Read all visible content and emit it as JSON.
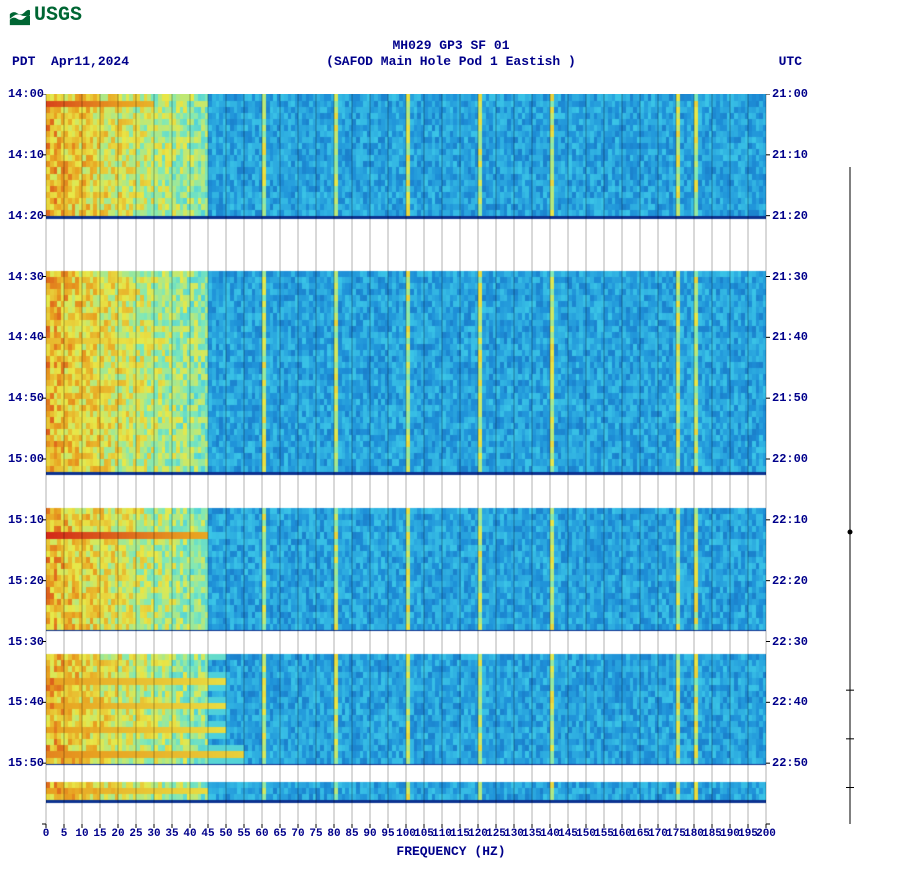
{
  "type": "spectrogram",
  "logo_text": "USGS",
  "title": "MH029 GP3 SF 01",
  "subtitle": "(SAFOD Main Hole Pod 1 Eastish )",
  "date_label": "Apr11,2024",
  "tz_left": "PDT",
  "tz_right": "UTC",
  "x_axis_title": "FREQUENCY (HZ)",
  "text_color": "#00008b",
  "logo_color": "#006633",
  "plot": {
    "xlim": [
      0,
      200
    ],
    "xtick_step": 5,
    "y_left_ticks": [
      "14:00",
      "14:10",
      "14:20",
      "14:30",
      "14:40",
      "14:50",
      "15:00",
      "15:10",
      "15:20",
      "15:30",
      "15:40",
      "15:50"
    ],
    "y_right_ticks": [
      "21:00",
      "21:10",
      "21:20",
      "21:30",
      "21:40",
      "21:50",
      "22:00",
      "22:10",
      "22:20",
      "22:30",
      "22:40",
      "22:50"
    ],
    "time_start_min": 0,
    "time_end_min": 120,
    "freq_bins": 200,
    "time_bins": 120,
    "colors": {
      "low": "#0a2a8a",
      "mid_low": "#1e90d8",
      "mid": "#3cc8e8",
      "mid_high": "#7fe8b8",
      "high": "#e8e848",
      "hot": "#e8a020",
      "very_hot": "#d01818",
      "gap": "#ffffff",
      "grid": "#000000"
    },
    "data_gaps_minutes": [
      [
        20.5,
        29
      ],
      [
        62.6,
        68
      ],
      [
        88.2,
        92
      ],
      [
        110.2,
        113
      ],
      [
        116.5,
        120
      ]
    ],
    "dark_bands_minutes": [
      19.5,
      62,
      88,
      110,
      116
    ],
    "hot_events": [
      {
        "time_min": 1,
        "freq_end": 30,
        "intensity": 0.95
      },
      {
        "time_min": 40,
        "freq_end": 30,
        "intensity": 0.8
      },
      {
        "time_min": 72,
        "freq_end": 45,
        "intensity": 0.98
      },
      {
        "time_min": 91,
        "freq_end": 50,
        "intensity": 0.95
      },
      {
        "time_min": 96,
        "freq_end": 50,
        "intensity": 0.85
      },
      {
        "time_min": 100,
        "freq_end": 50,
        "intensity": 0.85
      },
      {
        "time_min": 104,
        "freq_end": 50,
        "intensity": 0.85
      },
      {
        "time_min": 108,
        "freq_end": 55,
        "intensity": 0.88
      },
      {
        "time_min": 114,
        "freq_end": 45,
        "intensity": 0.85
      }
    ],
    "narrowband_lines_hz": [
      60,
      80,
      100,
      120,
      140,
      175,
      180
    ],
    "low_freq_high_power_cutoff_hz": 45,
    "right_markers_minutes": [
      {
        "type": "dot",
        "at": 72
      },
      {
        "type": "tick",
        "at": 98
      },
      {
        "type": "tick",
        "at": 106
      },
      {
        "type": "tick",
        "at": 114
      }
    ],
    "marker_bar_range": [
      12,
      120
    ]
  }
}
